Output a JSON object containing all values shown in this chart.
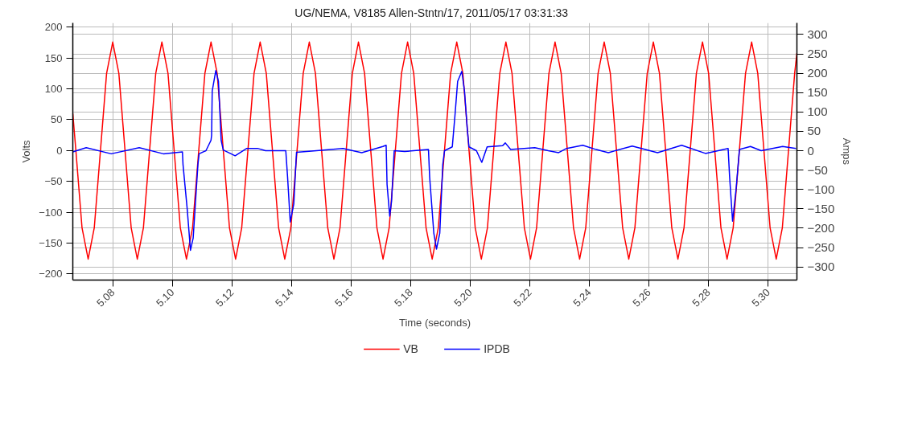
{
  "chart_data": {
    "type": "line",
    "title": "UG/NEMA,  V8185 Allen-Stntn/17,  2011/05/17 03:31:33",
    "xlabel": "Time (seconds)",
    "ylabel": "Volts",
    "y2label": "Amps",
    "xlim": [
      5.0666,
      5.3097
    ],
    "ylim": [
      -210,
      207
    ],
    "y2lim": [
      -334,
      330
    ],
    "xticks": [
      {
        "value": 5.08,
        "label": "5.08"
      },
      {
        "value": 5.1,
        "label": "5.10"
      },
      {
        "value": 5.12,
        "label": "5.12"
      },
      {
        "value": 5.14,
        "label": "5.14"
      },
      {
        "value": 5.16,
        "label": "5.16"
      },
      {
        "value": 5.18,
        "label": "5.18"
      },
      {
        "value": 5.2,
        "label": "5.20"
      },
      {
        "value": 5.22,
        "label": "5.22"
      },
      {
        "value": 5.24,
        "label": "5.24"
      },
      {
        "value": 5.26,
        "label": "5.26"
      },
      {
        "value": 5.28,
        "label": "5.28"
      },
      {
        "value": 5.3,
        "label": "5.30"
      }
    ],
    "yticks": [
      -200,
      -150,
      -100,
      -50,
      0,
      50,
      100,
      150,
      200
    ],
    "y2ticks": [
      -300,
      -250,
      -200,
      -150,
      -100,
      -50,
      0,
      50,
      100,
      150,
      200,
      250,
      300
    ],
    "grid": true,
    "legend": "bottom",
    "line_style": "solid",
    "series": [
      {
        "name": "VB",
        "color": "#ff0000",
        "x": [
          5.0666,
          5.06763,
          5.06969,
          5.07175,
          5.07381,
          5.07588,
          5.07794,
          5.08,
          5.08206,
          5.08413,
          5.08619,
          5.08825,
          5.09031,
          5.09238,
          5.09444,
          5.0965,
          5.09856,
          5.10063,
          5.10269,
          5.10475,
          5.10681,
          5.10888,
          5.11094,
          5.113,
          5.11506,
          5.11713,
          5.11919,
          5.12125,
          5.12331,
          5.12538,
          5.12744,
          5.1295,
          5.13156,
          5.13363,
          5.13569,
          5.13775,
          5.13981,
          5.14188,
          5.14394,
          5.146,
          5.14806,
          5.15013,
          5.15219,
          5.15425,
          5.15631,
          5.15838,
          5.16044,
          5.1625,
          5.16456,
          5.16663,
          5.16869,
          5.17075,
          5.17281,
          5.17488,
          5.17694,
          5.179,
          5.18106,
          5.18313,
          5.18519,
          5.18725,
          5.18931,
          5.19138,
          5.19344,
          5.1955,
          5.19756,
          5.19963,
          5.20169,
          5.20375,
          5.20581,
          5.20788,
          5.20994,
          5.212,
          5.21406,
          5.21613,
          5.21819,
          5.22025,
          5.22231,
          5.22438,
          5.22644,
          5.2285,
          5.23056,
          5.23263,
          5.23469,
          5.23675,
          5.23881,
          5.24088,
          5.24294,
          5.245,
          5.24706,
          5.24913,
          5.25119,
          5.25325,
          5.25531,
          5.25738,
          5.25944,
          5.2615,
          5.26356,
          5.26563,
          5.26769,
          5.26975,
          5.27181,
          5.27388,
          5.27594,
          5.278,
          5.28006,
          5.28213,
          5.28419,
          5.28625,
          5.28831,
          5.29038,
          5.29244,
          5.2945,
          5.29656,
          5.29863,
          5.30069,
          5.30275,
          5.30481,
          5.30688,
          5.30894,
          5.3097
        ],
        "values": [
          60,
          0,
          -125,
          -176,
          -125,
          0,
          125,
          176,
          125,
          0,
          -125,
          -176,
          -125,
          0,
          125,
          176,
          125,
          0,
          -125,
          -176,
          -125,
          0,
          125,
          176,
          125,
          0,
          -125,
          -176,
          -125,
          0,
          125,
          176,
          125,
          0,
          -125,
          -176,
          -125,
          0,
          125,
          176,
          125,
          0,
          -125,
          -176,
          -125,
          0,
          125,
          176,
          125,
          0,
          -125,
          -176,
          -125,
          0,
          125,
          176,
          125,
          0,
          -125,
          -176,
          -125,
          0,
          125,
          176,
          125,
          0,
          -125,
          -176,
          -125,
          0,
          125,
          176,
          125,
          0,
          -125,
          -176,
          -125,
          0,
          125,
          176,
          125,
          0,
          -125,
          -176,
          -125,
          0,
          125,
          176,
          125,
          0,
          -125,
          -176,
          -125,
          0,
          125,
          176,
          125,
          0,
          -125,
          -176,
          -125,
          0,
          125,
          176,
          125,
          0,
          -125,
          -176,
          -125,
          0,
          125,
          176,
          125,
          0,
          -125,
          -176,
          -125,
          0,
          125,
          158
        ]
      },
      {
        "name": "IPDB",
        "color": "#0000ff",
        "axis": "y2",
        "x": [
          5.0666,
          5.0711,
          5.0795,
          5.0889,
          5.097,
          5.1034,
          5.1036,
          5.105,
          5.1061,
          5.107,
          5.1086,
          5.109,
          5.1113,
          5.113,
          5.1132,
          5.1134,
          5.1146,
          5.1155,
          5.1164,
          5.1171,
          5.1211,
          5.125,
          5.1286,
          5.1313,
          5.1381,
          5.1387,
          5.1396,
          5.1408,
          5.1417,
          5.1484,
          5.1573,
          5.1636,
          5.1707,
          5.1718,
          5.1721,
          5.173,
          5.1736,
          5.1745,
          5.178,
          5.186,
          5.1864,
          5.1878,
          5.1887,
          5.1898,
          5.1908,
          5.1914,
          5.194,
          5.1949,
          5.1958,
          5.1972,
          5.1981,
          5.199,
          5.1996,
          5.2021,
          5.2039,
          5.2057,
          5.2109,
          5.2118,
          5.2136,
          5.2217,
          5.2262,
          5.2297,
          5.2324,
          5.2378,
          5.2423,
          5.2464,
          5.2544,
          5.2629,
          5.271,
          5.279,
          5.2866,
          5.2871,
          5.2881,
          5.2893,
          5.2904,
          5.2941,
          5.2977,
          5.3049,
          5.3094
        ],
        "values": [
          -3,
          8,
          -8,
          8,
          -8,
          -3,
          -36,
          -150,
          -257,
          -226,
          -36,
          -8,
          0,
          27,
          40,
          154,
          207,
          179,
          27,
          2,
          -13,
          6,
          6,
          0,
          0,
          -68,
          -184,
          -137,
          -4,
          0,
          6,
          -5,
          11,
          14,
          -87,
          -169,
          -131,
          0,
          -2,
          3,
          -68,
          -213,
          -254,
          -213,
          -36,
          0,
          10,
          91,
          179,
          205,
          154,
          59,
          10,
          0,
          -30,
          10,
          13,
          20,
          3,
          8,
          0,
          -5,
          6,
          14,
          3,
          -5,
          12,
          -5,
          14,
          -7,
          6,
          -67,
          -182,
          -98,
          3,
          11,
          0,
          11,
          6
        ]
      }
    ]
  }
}
